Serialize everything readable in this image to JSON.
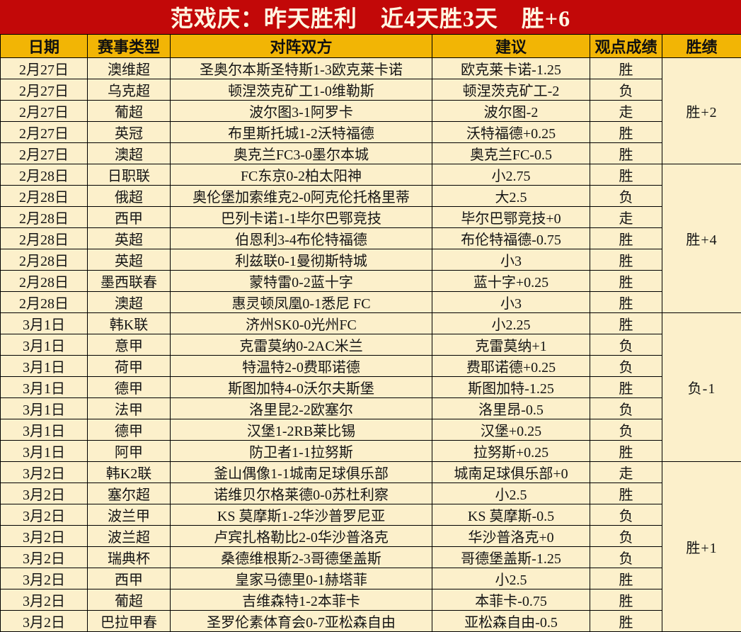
{
  "title": "范戏庆：昨天胜利　近4天胜3天　胜+6",
  "colors": {
    "accent_red": "#c20808",
    "gold": "#f2b505",
    "cream": "#fcf0cb",
    "win_red": "#e8392b",
    "title_text": "#fff6e2"
  },
  "columns": [
    "日期",
    "赛事类型",
    "对阵双方",
    "建议",
    "观点成绩",
    "胜绩"
  ],
  "groups": [
    {
      "summary": "胜+2",
      "rows": [
        {
          "date": "2月27日",
          "league": "澳维超",
          "match": "圣奥尔本斯圣特斯1-3欧克莱卡诺",
          "tip": "欧克莱卡诺-1.25",
          "result": "胜",
          "result_type": "win"
        },
        {
          "date": "2月27日",
          "league": "乌克超",
          "match": "顿涅茨克矿工1-0维勒斯",
          "tip": "顿涅茨克矿工-2",
          "result": "负",
          "result_type": "lose"
        },
        {
          "date": "2月27日",
          "league": "葡超",
          "match": "波尔图3-1阿罗卡",
          "tip": "波尔图-2",
          "result": "走",
          "result_type": "push"
        },
        {
          "date": "2月27日",
          "league": "英冠",
          "match": "布里斯托城1-2沃特福德",
          "tip": "沃特福德+0.25",
          "result": "胜",
          "result_type": "win"
        },
        {
          "date": "2月27日",
          "league": "澳超",
          "match": "奥克兰FC3-0墨尔本城",
          "tip": "奥克兰FC-0.5",
          "result": "胜",
          "result_type": "win"
        }
      ]
    },
    {
      "summary": "胜+4",
      "rows": [
        {
          "date": "2月28日",
          "league": "日职联",
          "match": "FC东京0-2柏太阳神",
          "tip": "小2.75",
          "result": "胜",
          "result_type": "win"
        },
        {
          "date": "2月28日",
          "league": "俄超",
          "match": "奥伦堡加索维克2-0阿克伦托格里蒂",
          "tip": "大2.5",
          "result": "负",
          "result_type": "lose"
        },
        {
          "date": "2月28日",
          "league": "西甲",
          "match": "巴列卡诺1-1毕尔巴鄂竞技",
          "tip": "毕尔巴鄂竞技+0",
          "result": "走",
          "result_type": "push"
        },
        {
          "date": "2月28日",
          "league": "英超",
          "match": "伯恩利3-4布伦特福德",
          "tip": "布伦特福德-0.75",
          "result": "胜",
          "result_type": "win"
        },
        {
          "date": "2月28日",
          "league": "英超",
          "match": "利兹联0-1曼彻斯特城",
          "tip": "小3",
          "result": "胜",
          "result_type": "win"
        },
        {
          "date": "2月28日",
          "league": "墨西联春",
          "match": "蒙特雷0-2蓝十字",
          "tip": "蓝十字+0.25",
          "result": "胜",
          "result_type": "win"
        },
        {
          "date": "2月28日",
          "league": "澳超",
          "match": "惠灵顿凤凰0-1悉尼 FC",
          "tip": "小3",
          "result": "胜",
          "result_type": "win"
        }
      ]
    },
    {
      "summary": "负-1",
      "rows": [
        {
          "date": "3月1日",
          "league": "韩K联",
          "match": "济州SK0-0光州FC",
          "tip": "小2.25",
          "result": "胜",
          "result_type": "win"
        },
        {
          "date": "3月1日",
          "league": "意甲",
          "match": "克雷莫纳0-2AC米兰",
          "tip": "克雷莫纳+1",
          "result": "负",
          "result_type": "lose"
        },
        {
          "date": "3月1日",
          "league": "荷甲",
          "match": "特温特2-0费耶诺德",
          "tip": "费耶诺德+0.25",
          "result": "负",
          "result_type": "lose"
        },
        {
          "date": "3月1日",
          "league": "德甲",
          "match": "斯图加特4-0沃尔夫斯堡",
          "tip": "斯图加特-1.25",
          "result": "胜",
          "result_type": "win"
        },
        {
          "date": "3月1日",
          "league": "法甲",
          "match": "洛里昆2-2欧塞尔",
          "tip": "洛里昂-0.5",
          "result": "负",
          "result_type": "lose"
        },
        {
          "date": "3月1日",
          "league": "德甲",
          "match": "汉堡1-2RB莱比锡",
          "tip": "汉堡+0.25",
          "result": "负",
          "result_type": "lose"
        },
        {
          "date": "3月1日",
          "league": "阿甲",
          "match": "防卫者1-1拉努斯",
          "tip": "拉努斯+0.25",
          "result": "胜",
          "result_type": "win"
        }
      ]
    },
    {
      "summary": "胜+1",
      "rows": [
        {
          "date": "3月2日",
          "league": "韩K2联",
          "match": "釜山偶像1-1城南足球俱乐部",
          "tip": "城南足球俱乐部+0",
          "result": "走",
          "result_type": "push"
        },
        {
          "date": "3月2日",
          "league": "塞尔超",
          "match": "诺维贝尔格莱德0-0苏杜利察",
          "tip": "小2.5",
          "result": "胜",
          "result_type": "win"
        },
        {
          "date": "3月2日",
          "league": "波兰甲",
          "match": "KS 莫摩斯1-2华沙普罗尼亚",
          "tip": "KS 莫摩斯-0.5",
          "result": "负",
          "result_type": "lose"
        },
        {
          "date": "3月2日",
          "league": "波兰超",
          "match": "卢宾扎格勒比2-0华沙普洛克",
          "tip": "华沙普洛克+0",
          "result": "负",
          "result_type": "lose"
        },
        {
          "date": "3月2日",
          "league": "瑞典杯",
          "match": "桑德维根斯2-3哥德堡盖斯",
          "tip": "哥德堡盖斯-1.25",
          "result": "负",
          "result_type": "lose"
        },
        {
          "date": "3月2日",
          "league": "西甲",
          "match": "皇家马德里0-1赫塔菲",
          "tip": "小2.5",
          "result": "胜",
          "result_type": "win"
        },
        {
          "date": "3月2日",
          "league": "葡超",
          "match": "吉维森特1-2本菲卡",
          "tip": "本菲卡-0.75",
          "result": "胜",
          "result_type": "win"
        },
        {
          "date": "3月2日",
          "league": "巴拉甲春",
          "match": "圣罗伦素体育会0-7亚松森自由",
          "tip": "亚松森自由-0.5",
          "result": "胜",
          "result_type": "win"
        }
      ]
    }
  ]
}
